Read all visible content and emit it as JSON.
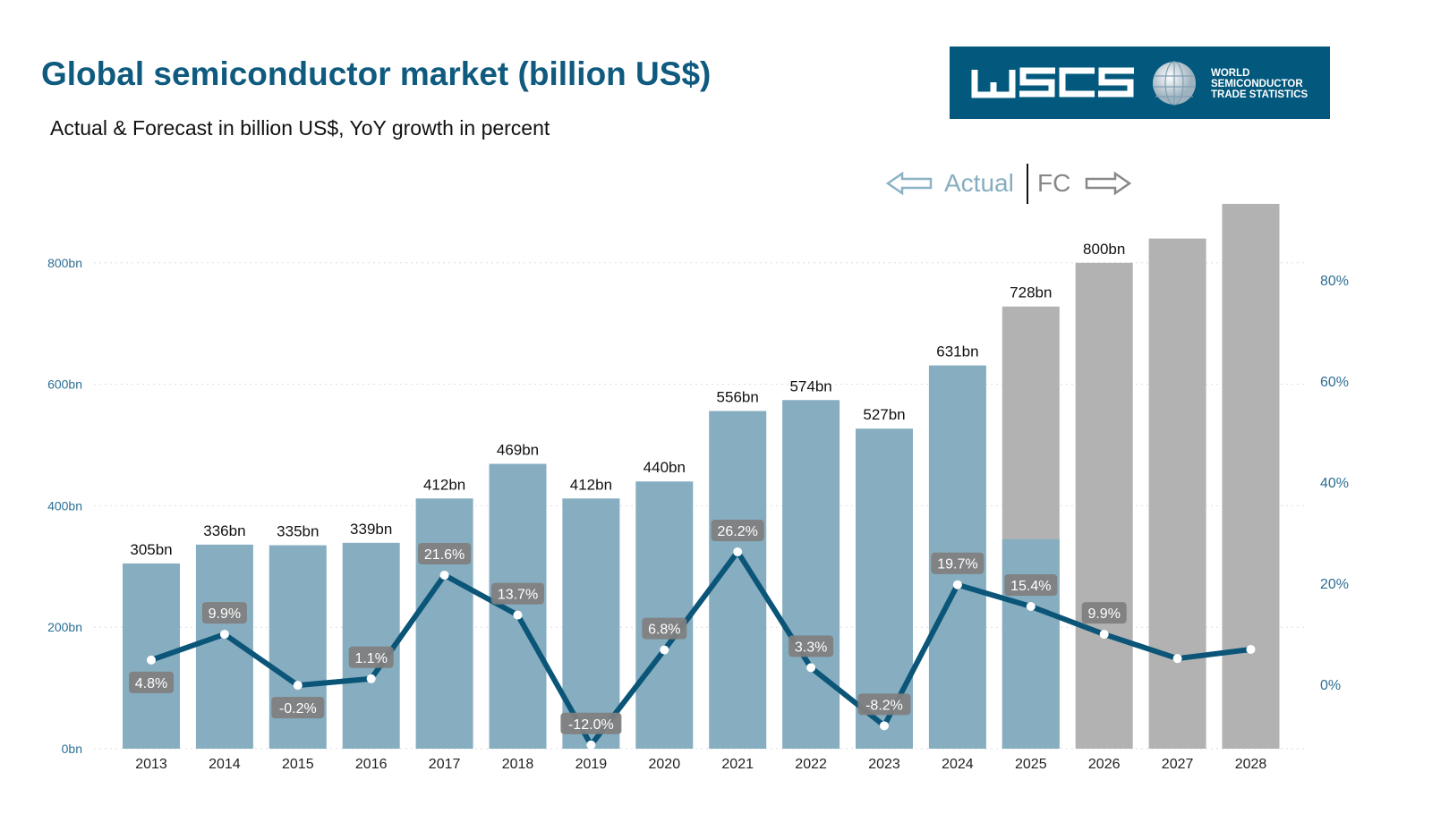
{
  "title": "Global semiconductor market (billion US$)",
  "subtitle": "Actual & Forecast in billion US$, YoY growth in percent",
  "logo": {
    "wordmark": "WSTS",
    "line1": "WORLD",
    "line2": "SEMICONDUCTOR",
    "line3": "TRADE STATISTICS"
  },
  "legend": {
    "actual": "Actual",
    "forecast": "FC"
  },
  "colors": {
    "title": "#0f5a7f",
    "actual_bar": "#86aec0",
    "forecast_bar": "#b2b2b2",
    "line": "#0b5578",
    "label_box": "#7f7f7f",
    "tick": "#2d6f95"
  },
  "chart_data": {
    "type": "bar+line",
    "title": "Global semiconductor market (billion US$)",
    "categories": [
      "2013",
      "2014",
      "2015",
      "2016",
      "2017",
      "2018",
      "2019",
      "2020",
      "2021",
      "2022",
      "2023",
      "2024",
      "2025",
      "2026",
      "2027",
      "2028"
    ],
    "series": [
      {
        "name": "Market (billion US$)",
        "axis": "left",
        "type": "bar",
        "values": [
          305,
          336,
          335,
          339,
          412,
          469,
          412,
          440,
          556,
          574,
          527,
          631,
          728,
          800,
          840,
          897
        ],
        "labels": [
          "305bn",
          "336bn",
          "335bn",
          "339bn",
          "412bn",
          "469bn",
          "412bn",
          "440bn",
          "556bn",
          "574bn",
          "527bn",
          "631bn",
          "728bn",
          "800bn",
          "",
          ""
        ],
        "status": [
          "actual",
          "actual",
          "actual",
          "actual",
          "actual",
          "actual",
          "actual",
          "actual",
          "actual",
          "actual",
          "actual",
          "actual",
          "forecast",
          "forecast",
          "forecast",
          "forecast"
        ],
        "actual_portion": [
          null,
          null,
          null,
          null,
          null,
          null,
          null,
          null,
          null,
          null,
          null,
          null,
          345,
          null,
          null,
          null
        ]
      },
      {
        "name": "YoY growth (%)",
        "axis": "right",
        "type": "line",
        "values": [
          4.8,
          9.9,
          -0.2,
          1.1,
          21.6,
          13.7,
          -12.0,
          6.8,
          26.2,
          3.3,
          -8.2,
          19.7,
          15.4,
          9.9,
          5.1,
          6.9
        ],
        "labels": [
          "4.8%",
          "9.9%",
          "-0.2%",
          "1.1%",
          "21.6%",
          "13.7%",
          "-12.0%",
          "6.8%",
          "26.2%",
          "3.3%",
          "-8.2%",
          "19.7%",
          "15.4%",
          "9.9%",
          "",
          ""
        ],
        "label_pos": [
          "below",
          "above",
          "below",
          "above",
          "above",
          "above",
          "above",
          "above",
          "above",
          "above",
          "above",
          "above",
          "above",
          "above",
          "",
          ""
        ]
      }
    ],
    "yaxis_left": {
      "ylim": [
        0,
        900
      ],
      "ticks": [
        0,
        200,
        400,
        600,
        800
      ],
      "tick_labels": [
        "0bn",
        "200bn",
        "400bn",
        "600bn",
        "800bn"
      ]
    },
    "yaxis_right": {
      "ticks": [
        0,
        20,
        40,
        60,
        80
      ],
      "tick_labels": [
        "0%",
        "20%",
        "40%",
        "60%",
        "80%"
      ]
    },
    "grid": true
  }
}
